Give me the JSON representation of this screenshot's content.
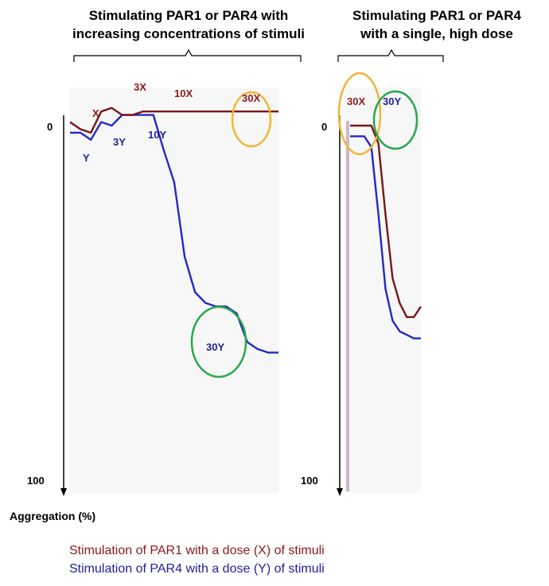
{
  "colors": {
    "par1": "#7a1616",
    "par4": "#2626c8",
    "yellow": "#f2b535",
    "green": "#26a84a"
  },
  "headings": {
    "left": [
      "Stimulating PAR1 or PAR4 with",
      "increasing concentrations of stimuli"
    ],
    "right": [
      "Stimulating PAR1 or PAR4",
      "with a single, high dose"
    ]
  },
  "xlabel": "Aggregation (%)",
  "legend": {
    "par1": "Stimulation of PAR1 with a dose (X) of stimuli",
    "par4": "Stimulation of PAR4 with a dose (Y) of stimuli"
  },
  "chart_data": [
    {
      "type": "line",
      "title": "Stimulating PAR1 or PAR4 with increasing concentrations of stimuli",
      "xlabel": "",
      "ylabel": "Aggregation (%)",
      "y_axis_inverted": true,
      "ylim": [
        0,
        100
      ],
      "yticks": [
        "0",
        "100"
      ],
      "x": [
        0,
        5,
        10,
        15,
        20,
        25,
        30,
        35,
        40,
        45,
        50,
        55,
        60,
        65,
        70,
        75,
        80,
        85,
        90,
        95,
        100
      ],
      "series": [
        {
          "name": "Stimulation of PAR1 with a dose (X) of stimuli",
          "color": "#7a1616",
          "values": [
            -1,
            1,
            2,
            -4,
            -5,
            -3,
            -3,
            -4,
            -4,
            -4,
            -4,
            -4,
            -4,
            -4,
            -4,
            -4,
            -4,
            -4,
            -4,
            -4,
            -4
          ]
        },
        {
          "name": "Stimulation of PAR4 with a dose (Y) of stimuli",
          "color": "#2626c8",
          "values": [
            2,
            2,
            4,
            -1,
            0,
            -3,
            -3,
            -3,
            -3,
            7,
            16,
            37,
            47,
            50,
            51,
            51,
            53,
            61,
            63,
            64,
            64
          ]
        }
      ],
      "annotations": [
        "X",
        "Y",
        "3X",
        "3Y",
        "10X",
        "10Y",
        "30X",
        "30Y"
      ]
    },
    {
      "type": "line",
      "title": "Stimulating PAR1 or PAR4 with a single, high dose",
      "xlabel": "",
      "ylabel": "Aggregation (%)",
      "y_axis_inverted": true,
      "ylim": [
        0,
        100
      ],
      "yticks": [
        "0",
        "100"
      ],
      "x": [
        0,
        10,
        20,
        30,
        40,
        50,
        60,
        70,
        80,
        90,
        100
      ],
      "series": [
        {
          "name": "Stimulation of PAR1 with a dose (X) of stimuli",
          "color": "#7a1616",
          "values": [
            0,
            0,
            0,
            0,
            5,
            25,
            43,
            50,
            54,
            54,
            51
          ]
        },
        {
          "name": "Stimulation of PAR4 with a dose (Y) of stimuli",
          "color": "#2626c8",
          "values": [
            3,
            3,
            3,
            6,
            25,
            46,
            55,
            58,
            59,
            60,
            60
          ]
        }
      ],
      "annotations": [
        "30X",
        "30Y"
      ]
    }
  ]
}
